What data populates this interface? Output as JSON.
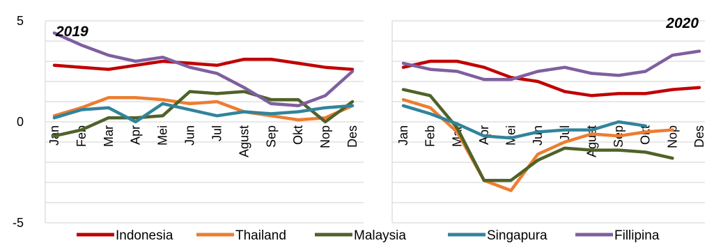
{
  "chart_data": {
    "type": "line",
    "ylim": [
      -5,
      5
    ],
    "y_ticks": [
      "5",
      "0",
      "-5"
    ],
    "grid": true,
    "legend_position": "bottom",
    "series_colors": {
      "Indonesia": "#C00000",
      "Thailand": "#ED7D31",
      "Malaysia": "#4F6228",
      "Singapura": "#31849B",
      "Fillipina": "#7F5F9F"
    },
    "panels": [
      {
        "label": "2019",
        "categories": [
          "Jan",
          "Feb",
          "Mar",
          "Apr",
          "Mei",
          "Jun",
          "Jul",
          "Agust",
          "Sep",
          "Okt",
          "Nop",
          "Des"
        ],
        "series": [
          {
            "name": "Indonesia",
            "values": [
              2.8,
              2.7,
              2.6,
              2.8,
              3.0,
              2.9,
              2.8,
              3.1,
              3.1,
              2.9,
              2.7,
              2.6
            ]
          },
          {
            "name": "Thailand",
            "values": [
              0.3,
              0.7,
              1.2,
              1.2,
              1.1,
              0.9,
              1.0,
              0.5,
              0.3,
              0.1,
              0.2,
              0.8
            ]
          },
          {
            "name": "Malaysia",
            "values": [
              -0.7,
              -0.4,
              0.2,
              0.2,
              0.3,
              1.5,
              1.4,
              1.5,
              1.1,
              1.1,
              0.0,
              1.0
            ]
          },
          {
            "name": "Singapura",
            "values": [
              0.2,
              0.6,
              0.7,
              0.0,
              0.9,
              0.6,
              0.3,
              0.5,
              0.4,
              0.5,
              0.7,
              0.8
            ]
          },
          {
            "name": "Fillipina",
            "values": [
              4.4,
              3.8,
              3.3,
              3.0,
              3.2,
              2.7,
              2.4,
              1.7,
              0.9,
              0.8,
              1.3,
              2.5
            ]
          }
        ]
      },
      {
        "label": "2020",
        "categories": [
          "Jan",
          "Feb",
          "Mar",
          "Apr",
          "Mei",
          "Jun",
          "Jul",
          "Agust",
          "Sep",
          "Okt",
          "Nop",
          "Des"
        ],
        "series": [
          {
            "name": "Indonesia",
            "values": [
              2.7,
              3.0,
              3.0,
              2.7,
              2.2,
              2.0,
              1.5,
              1.3,
              1.4,
              1.4,
              1.6,
              1.7
            ]
          },
          {
            "name": "Thailand",
            "values": [
              1.1,
              0.7,
              -0.5,
              -2.9,
              -3.4,
              -1.6,
              -1.0,
              -0.6,
              -0.7,
              -0.5,
              -0.4,
              null
            ]
          },
          {
            "name": "Malaysia",
            "values": [
              1.6,
              1.3,
              -0.3,
              -2.9,
              -2.9,
              -1.9,
              -1.3,
              -1.4,
              -1.4,
              -1.5,
              -1.8,
              null
            ]
          },
          {
            "name": "Singapura",
            "values": [
              0.8,
              0.4,
              -0.1,
              -0.7,
              -0.8,
              -0.5,
              -0.4,
              -0.4,
              0.0,
              -0.2,
              null,
              null
            ]
          },
          {
            "name": "Fillipina",
            "values": [
              2.9,
              2.6,
              2.5,
              2.1,
              2.1,
              2.5,
              2.7,
              2.4,
              2.3,
              2.5,
              3.3,
              3.5
            ]
          }
        ]
      }
    ]
  }
}
